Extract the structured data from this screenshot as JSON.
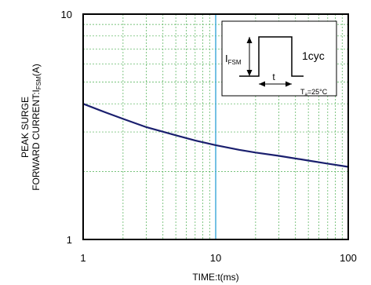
{
  "chart_data": {
    "type": "line",
    "x_scale": "log",
    "y_scale": "log",
    "xlim": [
      1,
      100
    ],
    "ylim": [
      1,
      10
    ],
    "xlabel": "TIME:t(ms)",
    "ylabel_line1": "PEAK SURGE",
    "ylabel_line2_prefix": "FORWARD CURRENT:I",
    "ylabel_line2_sub": "FSM",
    "ylabel_line2_suffix": "(A)",
    "x_ticks": [
      "1",
      "10",
      "100"
    ],
    "y_ticks": [
      "1",
      "10"
    ],
    "grid": true,
    "highlight_x": 10,
    "series": [
      {
        "color": "#1a1f6e",
        "x": [
          1,
          1.5,
          2,
          3,
          5,
          7,
          10,
          15,
          20,
          30,
          50,
          70,
          100
        ],
        "y": [
          4.0,
          3.65,
          3.43,
          3.15,
          2.9,
          2.75,
          2.62,
          2.5,
          2.43,
          2.35,
          2.24,
          2.17,
          2.1
        ]
      }
    ],
    "inset": {
      "label_main": "I",
      "label_sub": "FSM",
      "cycle_label": "1cyc",
      "t_label": "t",
      "temp_main": "T",
      "temp_sub": "a",
      "temp_value": "=25°C"
    }
  },
  "colors": {
    "grid": "#4caf50",
    "highlight": "#3aa7d8",
    "curve": "#1a1f6e"
  }
}
